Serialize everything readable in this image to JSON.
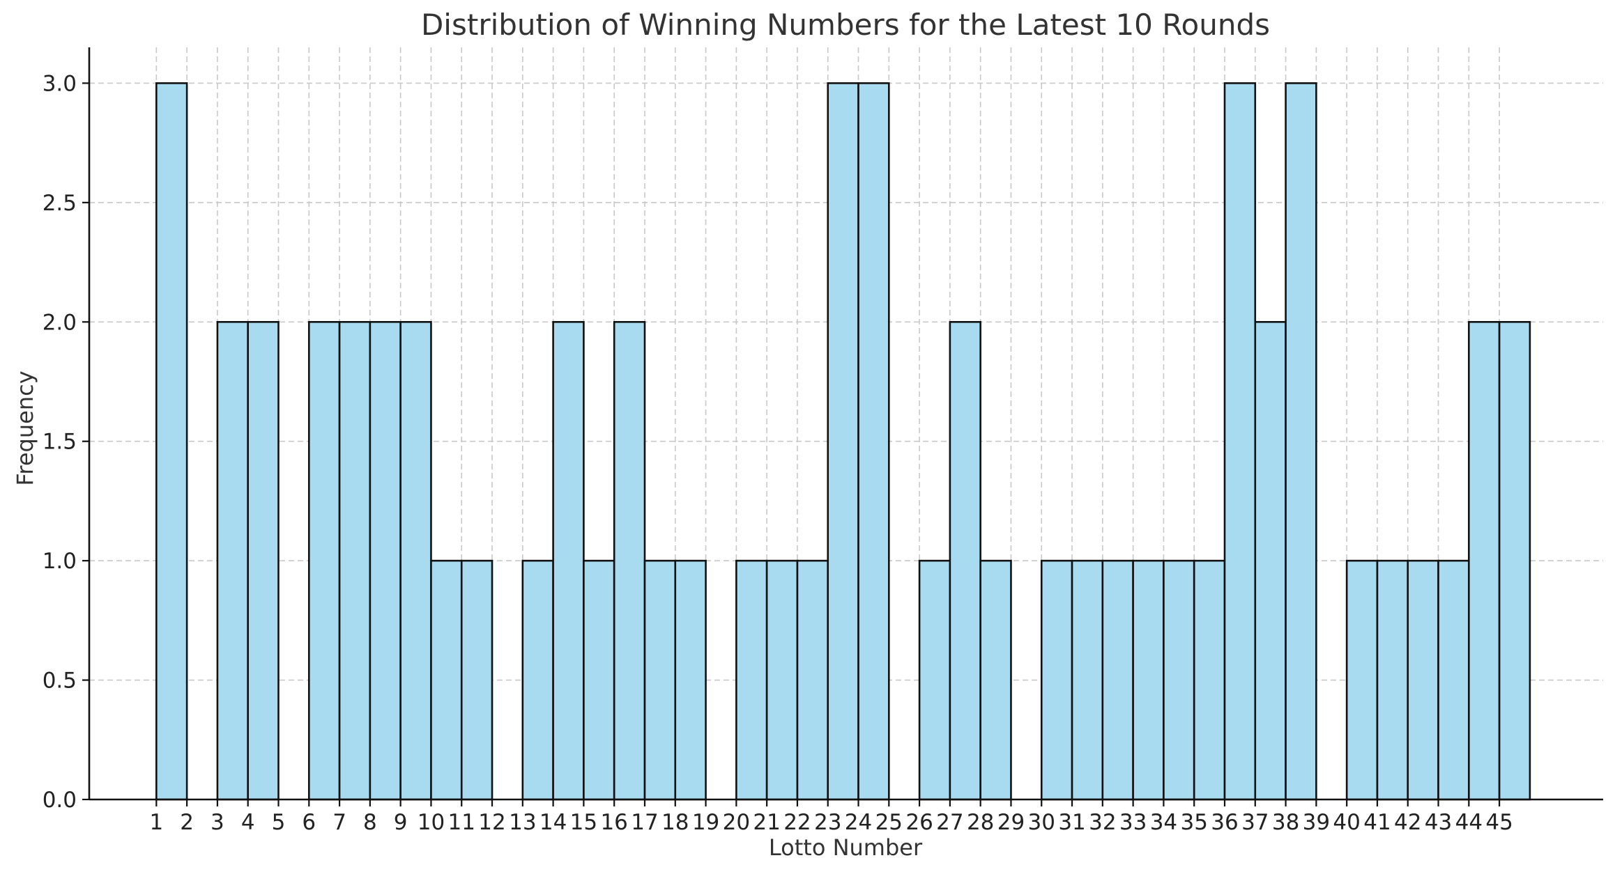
{
  "chart_data": {
    "type": "bar",
    "title": "Distribution of Winning Numbers for the Latest 10 Rounds",
    "xlabel": "Lotto Number",
    "ylabel": "Frequency",
    "ylim": [
      0,
      3.15
    ],
    "yticks": [
      "0.0",
      "0.5",
      "1.0",
      "1.5",
      "2.0",
      "2.5",
      "3.0"
    ],
    "xticks": [
      "1",
      "2",
      "3",
      "4",
      "5",
      "6",
      "7",
      "8",
      "9",
      "10",
      "11",
      "12",
      "13",
      "14",
      "15",
      "16",
      "17",
      "18",
      "19",
      "20",
      "21",
      "22",
      "23",
      "24",
      "25",
      "26",
      "27",
      "28",
      "29",
      "30",
      "31",
      "32",
      "33",
      "34",
      "35",
      "36",
      "37",
      "38",
      "39",
      "40",
      "41",
      "42",
      "43",
      "44",
      "45"
    ],
    "grid": true,
    "bar_color": "#a8daf0",
    "edge_color": "#111111",
    "bars": [
      {
        "start": 1,
        "end": 2,
        "value": 3
      },
      {
        "start": 3,
        "end": 4,
        "value": 2
      },
      {
        "start": 4,
        "end": 5,
        "value": 2
      },
      {
        "start": 6,
        "end": 7,
        "value": 2
      },
      {
        "start": 7,
        "end": 8,
        "value": 2
      },
      {
        "start": 8,
        "end": 9,
        "value": 2
      },
      {
        "start": 9,
        "end": 10,
        "value": 2
      },
      {
        "start": 10,
        "end": 11,
        "value": 1
      },
      {
        "start": 11,
        "end": 12,
        "value": 1
      },
      {
        "start": 13,
        "end": 14,
        "value": 1
      },
      {
        "start": 14,
        "end": 15,
        "value": 2
      },
      {
        "start": 15,
        "end": 16,
        "value": 1
      },
      {
        "start": 16,
        "end": 17,
        "value": 2
      },
      {
        "start": 17,
        "end": 18,
        "value": 1
      },
      {
        "start": 18,
        "end": 19,
        "value": 1
      },
      {
        "start": 20,
        "end": 21,
        "value": 1
      },
      {
        "start": 21,
        "end": 22,
        "value": 1
      },
      {
        "start": 22,
        "end": 23,
        "value": 1
      },
      {
        "start": 23,
        "end": 24,
        "value": 3
      },
      {
        "start": 24,
        "end": 25,
        "value": 3
      },
      {
        "start": 26,
        "end": 27,
        "value": 1
      },
      {
        "start": 27,
        "end": 28,
        "value": 2
      },
      {
        "start": 28,
        "end": 29,
        "value": 1
      },
      {
        "start": 30,
        "end": 31,
        "value": 1
      },
      {
        "start": 31,
        "end": 32,
        "value": 1
      },
      {
        "start": 32,
        "end": 33,
        "value": 1
      },
      {
        "start": 33,
        "end": 34,
        "value": 1
      },
      {
        "start": 34,
        "end": 35,
        "value": 1
      },
      {
        "start": 35,
        "end": 36,
        "value": 1
      },
      {
        "start": 36,
        "end": 37,
        "value": 3
      },
      {
        "start": 37,
        "end": 38,
        "value": 2
      },
      {
        "start": 38,
        "end": 39,
        "value": 3
      },
      {
        "start": 40,
        "end": 41,
        "value": 1
      },
      {
        "start": 41,
        "end": 42,
        "value": 1
      },
      {
        "start": 42,
        "end": 43,
        "value": 1
      },
      {
        "start": 43,
        "end": 44,
        "value": 1
      },
      {
        "start": 44,
        "end": 45,
        "value": 2
      },
      {
        "start": 45,
        "end": 46,
        "value": 2
      }
    ]
  }
}
